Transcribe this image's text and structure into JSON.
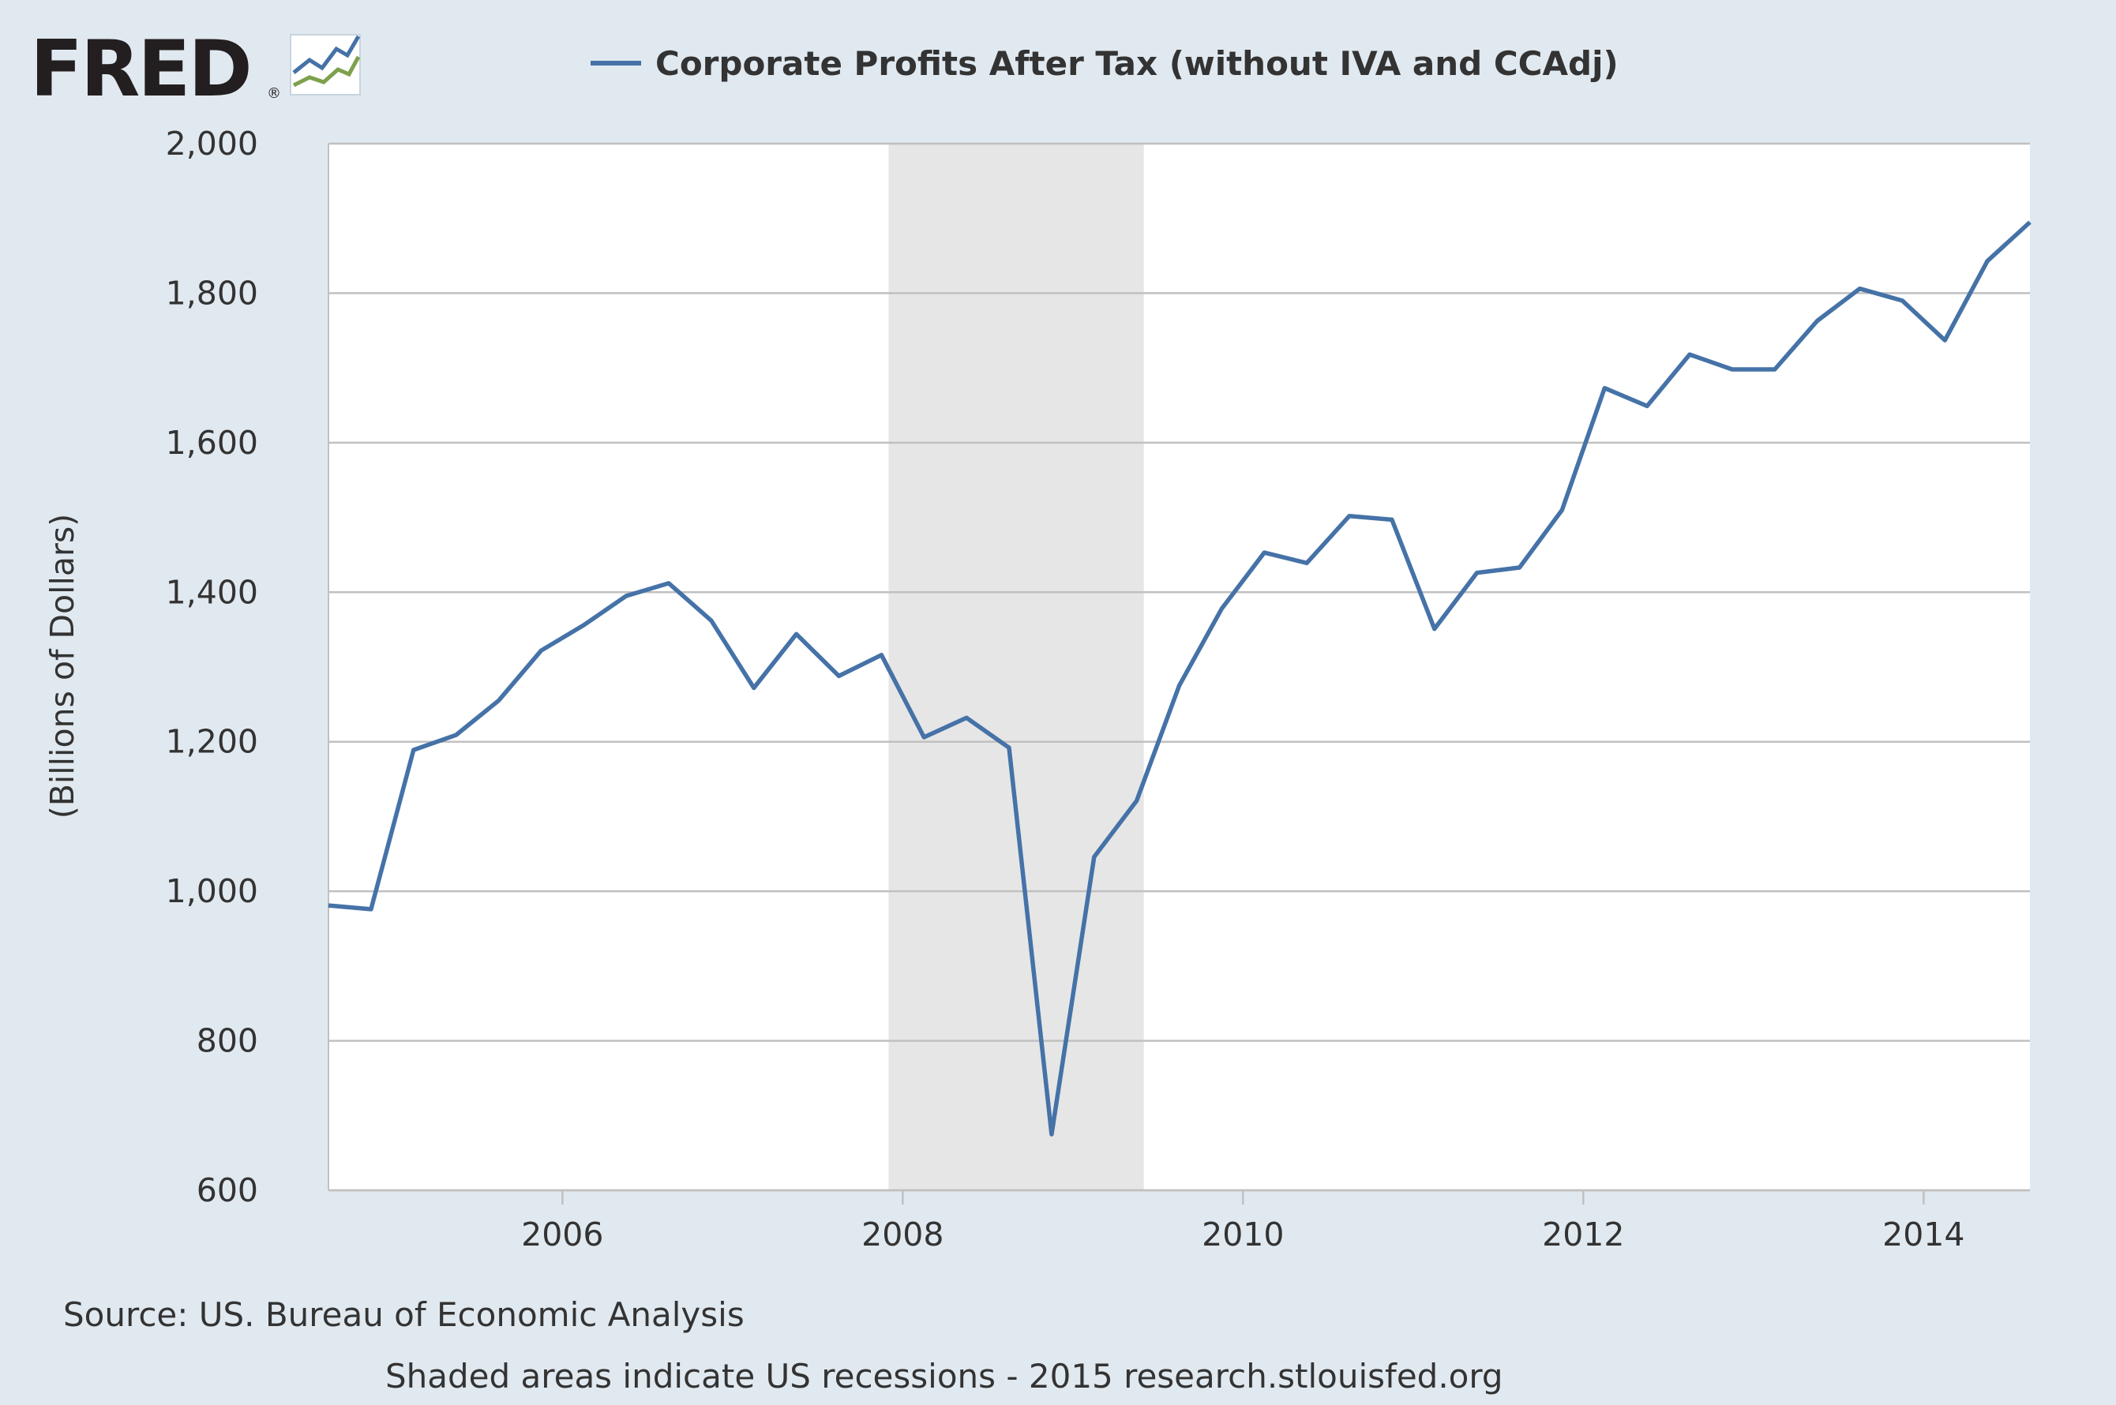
{
  "logo": {
    "text": "FRED",
    "registered": "®"
  },
  "colors": {
    "background": "#e1e9f0",
    "plot_background": "#ffffff",
    "series": "#4572a7",
    "recession_shade": "#e6e6e6",
    "grid": "#c0c0c0",
    "text": "#333333"
  },
  "footer": {
    "source": "Source: US. Bureau of Economic Analysis",
    "note": "Shaded areas indicate US recessions - 2015 research.stlouisfed.org"
  },
  "chart_data": {
    "type": "line",
    "title": "",
    "xlabel": "",
    "ylabel": "(Billions of Dollars)",
    "ylim": [
      600,
      2000
    ],
    "xlim": [
      2004.625,
      2014.625
    ],
    "yticks": [
      600,
      800,
      1000,
      1200,
      1400,
      1600,
      1800,
      2000
    ],
    "ytick_labels": [
      "600",
      "800",
      "1,000",
      "1,200",
      "1,400",
      "1,600",
      "1,800",
      "2,000"
    ],
    "xticks": [
      2006,
      2008,
      2010,
      2012,
      2014
    ],
    "xtick_labels": [
      "2006",
      "2008",
      "2010",
      "2012",
      "2014"
    ],
    "grid": true,
    "legend_position": "top-center",
    "recessions": [
      [
        2007.917,
        2009.417
      ]
    ],
    "series": [
      {
        "name": "Corporate Profits After Tax (without IVA and CCAdj)",
        "x": [
          2004.625,
          2004.875,
          2005.125,
          2005.375,
          2005.625,
          2005.875,
          2006.125,
          2006.375,
          2006.625,
          2006.875,
          2007.125,
          2007.375,
          2007.625,
          2007.875,
          2008.125,
          2008.375,
          2008.625,
          2008.875,
          2009.125,
          2009.375,
          2009.625,
          2009.875,
          2010.125,
          2010.375,
          2010.625,
          2010.875,
          2011.125,
          2011.375,
          2011.625,
          2011.875,
          2012.125,
          2012.375,
          2012.625,
          2012.875,
          2013.125,
          2013.375,
          2013.625,
          2013.875,
          2014.125,
          2014.375,
          2014.625
        ],
        "values": [
          981,
          976,
          1189,
          1209,
          1255,
          1322,
          1356,
          1395,
          1412,
          1362,
          1272,
          1344,
          1288,
          1316,
          1206,
          1232,
          1192,
          675,
          1046,
          1121,
          1275,
          1378,
          1453,
          1439,
          1502,
          1497,
          1351,
          1426,
          1433,
          1510,
          1673,
          1649,
          1718,
          1698,
          1698,
          1763,
          1806,
          1790,
          1737,
          1843,
          1895
        ]
      }
    ]
  }
}
